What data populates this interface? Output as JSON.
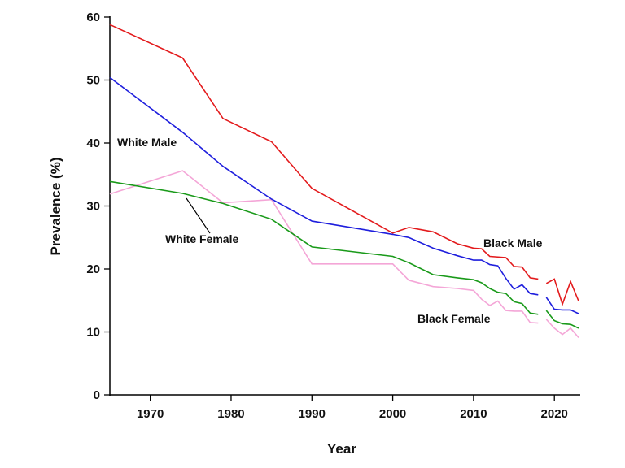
{
  "chart_data": {
    "type": "line",
    "title": "",
    "xlabel": "Year",
    "ylabel": "Prevalence (%)",
    "xlim": [
      1965,
      2023
    ],
    "ylim": [
      0,
      60
    ],
    "x_ticks": [
      1970,
      1980,
      1990,
      2000,
      2010,
      2020
    ],
    "y_ticks": [
      0,
      10,
      20,
      30,
      40,
      50,
      60
    ],
    "grid": false,
    "legend": "none",
    "series": [
      {
        "name": "Black Male",
        "color": "#e31a1c",
        "segments": [
          [
            [
              1965,
              58.8
            ],
            [
              1974,
              53.5
            ],
            [
              1979,
              43.9
            ],
            [
              1985,
              40.2
            ],
            [
              1990,
              32.8
            ],
            [
              2000,
              25.7
            ],
            [
              2002,
              26.6
            ],
            [
              2005,
              25.9
            ],
            [
              2008,
              24.0
            ],
            [
              2010,
              23.3
            ],
            [
              2011,
              23.2
            ],
            [
              2012,
              22.0
            ],
            [
              2014,
              21.8
            ],
            [
              2015,
              20.4
            ],
            [
              2016,
              20.3
            ],
            [
              2017,
              18.6
            ],
            [
              2018,
              18.4
            ]
          ],
          [
            [
              2019,
              17.7
            ],
            [
              2020,
              18.4
            ],
            [
              2021,
              14.4
            ],
            [
              2022,
              18.0
            ],
            [
              2023,
              14.9
            ]
          ]
        ]
      },
      {
        "name": "White Male",
        "color": "#1f1fdd",
        "segments": [
          [
            [
              1965,
              50.4
            ],
            [
              1974,
              41.7
            ],
            [
              1979,
              36.3
            ],
            [
              1985,
              31.1
            ],
            [
              1990,
              27.6
            ],
            [
              2000,
              25.5
            ],
            [
              2002,
              25.0
            ],
            [
              2005,
              23.3
            ],
            [
              2008,
              22.1
            ],
            [
              2010,
              21.4
            ],
            [
              2011,
              21.4
            ],
            [
              2012,
              20.7
            ],
            [
              2013,
              20.5
            ],
            [
              2014,
              18.5
            ],
            [
              2015,
              16.8
            ],
            [
              2016,
              17.5
            ],
            [
              2017,
              16.1
            ],
            [
              2018,
              15.9
            ]
          ],
          [
            [
              2019,
              15.5
            ],
            [
              2020,
              13.6
            ],
            [
              2021,
              13.5
            ],
            [
              2022,
              13.5
            ],
            [
              2023,
              12.9
            ]
          ]
        ]
      },
      {
        "name": "White Female",
        "color": "#1a9a1a",
        "segments": [
          [
            [
              1965,
              33.9
            ],
            [
              1974,
              32.0
            ],
            [
              1979,
              30.4
            ],
            [
              1985,
              27.9
            ],
            [
              1990,
              23.5
            ],
            [
              2000,
              22.0
            ],
            [
              2002,
              21.0
            ],
            [
              2005,
              19.1
            ],
            [
              2008,
              18.6
            ],
            [
              2010,
              18.3
            ],
            [
              2011,
              17.8
            ],
            [
              2012,
              16.9
            ],
            [
              2013,
              16.3
            ],
            [
              2014,
              16.1
            ],
            [
              2015,
              14.8
            ],
            [
              2016,
              14.5
            ],
            [
              2017,
              13.0
            ],
            [
              2018,
              12.8
            ]
          ],
          [
            [
              2019,
              13.4
            ],
            [
              2020,
              11.8
            ],
            [
              2021,
              11.3
            ],
            [
              2022,
              11.2
            ],
            [
              2023,
              10.6
            ]
          ]
        ]
      },
      {
        "name": "Black Female",
        "color": "#f4a6d7",
        "segments": [
          [
            [
              1965,
              31.9
            ],
            [
              1974,
              35.6
            ],
            [
              1979,
              30.5
            ],
            [
              1985,
              31.0
            ],
            [
              1990,
              20.8
            ],
            [
              2000,
              20.8
            ],
            [
              2002,
              18.2
            ],
            [
              2005,
              17.2
            ],
            [
              2008,
              16.9
            ],
            [
              2010,
              16.6
            ],
            [
              2011,
              15.2
            ],
            [
              2012,
              14.2
            ],
            [
              2013,
              14.9
            ],
            [
              2014,
              13.4
            ],
            [
              2015,
              13.3
            ],
            [
              2016,
              13.3
            ],
            [
              2017,
              11.5
            ],
            [
              2018,
              11.4
            ]
          ],
          [
            [
              2019,
              12.0
            ],
            [
              2020,
              10.6
            ],
            [
              2021,
              9.6
            ],
            [
              2022,
              10.6
            ],
            [
              2023,
              9.1
            ]
          ]
        ]
      }
    ],
    "annotations": [
      {
        "text": "White Male",
        "series": "White Male"
      },
      {
        "text": "White Female",
        "series": "White Female"
      },
      {
        "text": "Black Male",
        "series": "Black Male"
      },
      {
        "text": "Black Female",
        "series": "Black Female"
      }
    ]
  }
}
